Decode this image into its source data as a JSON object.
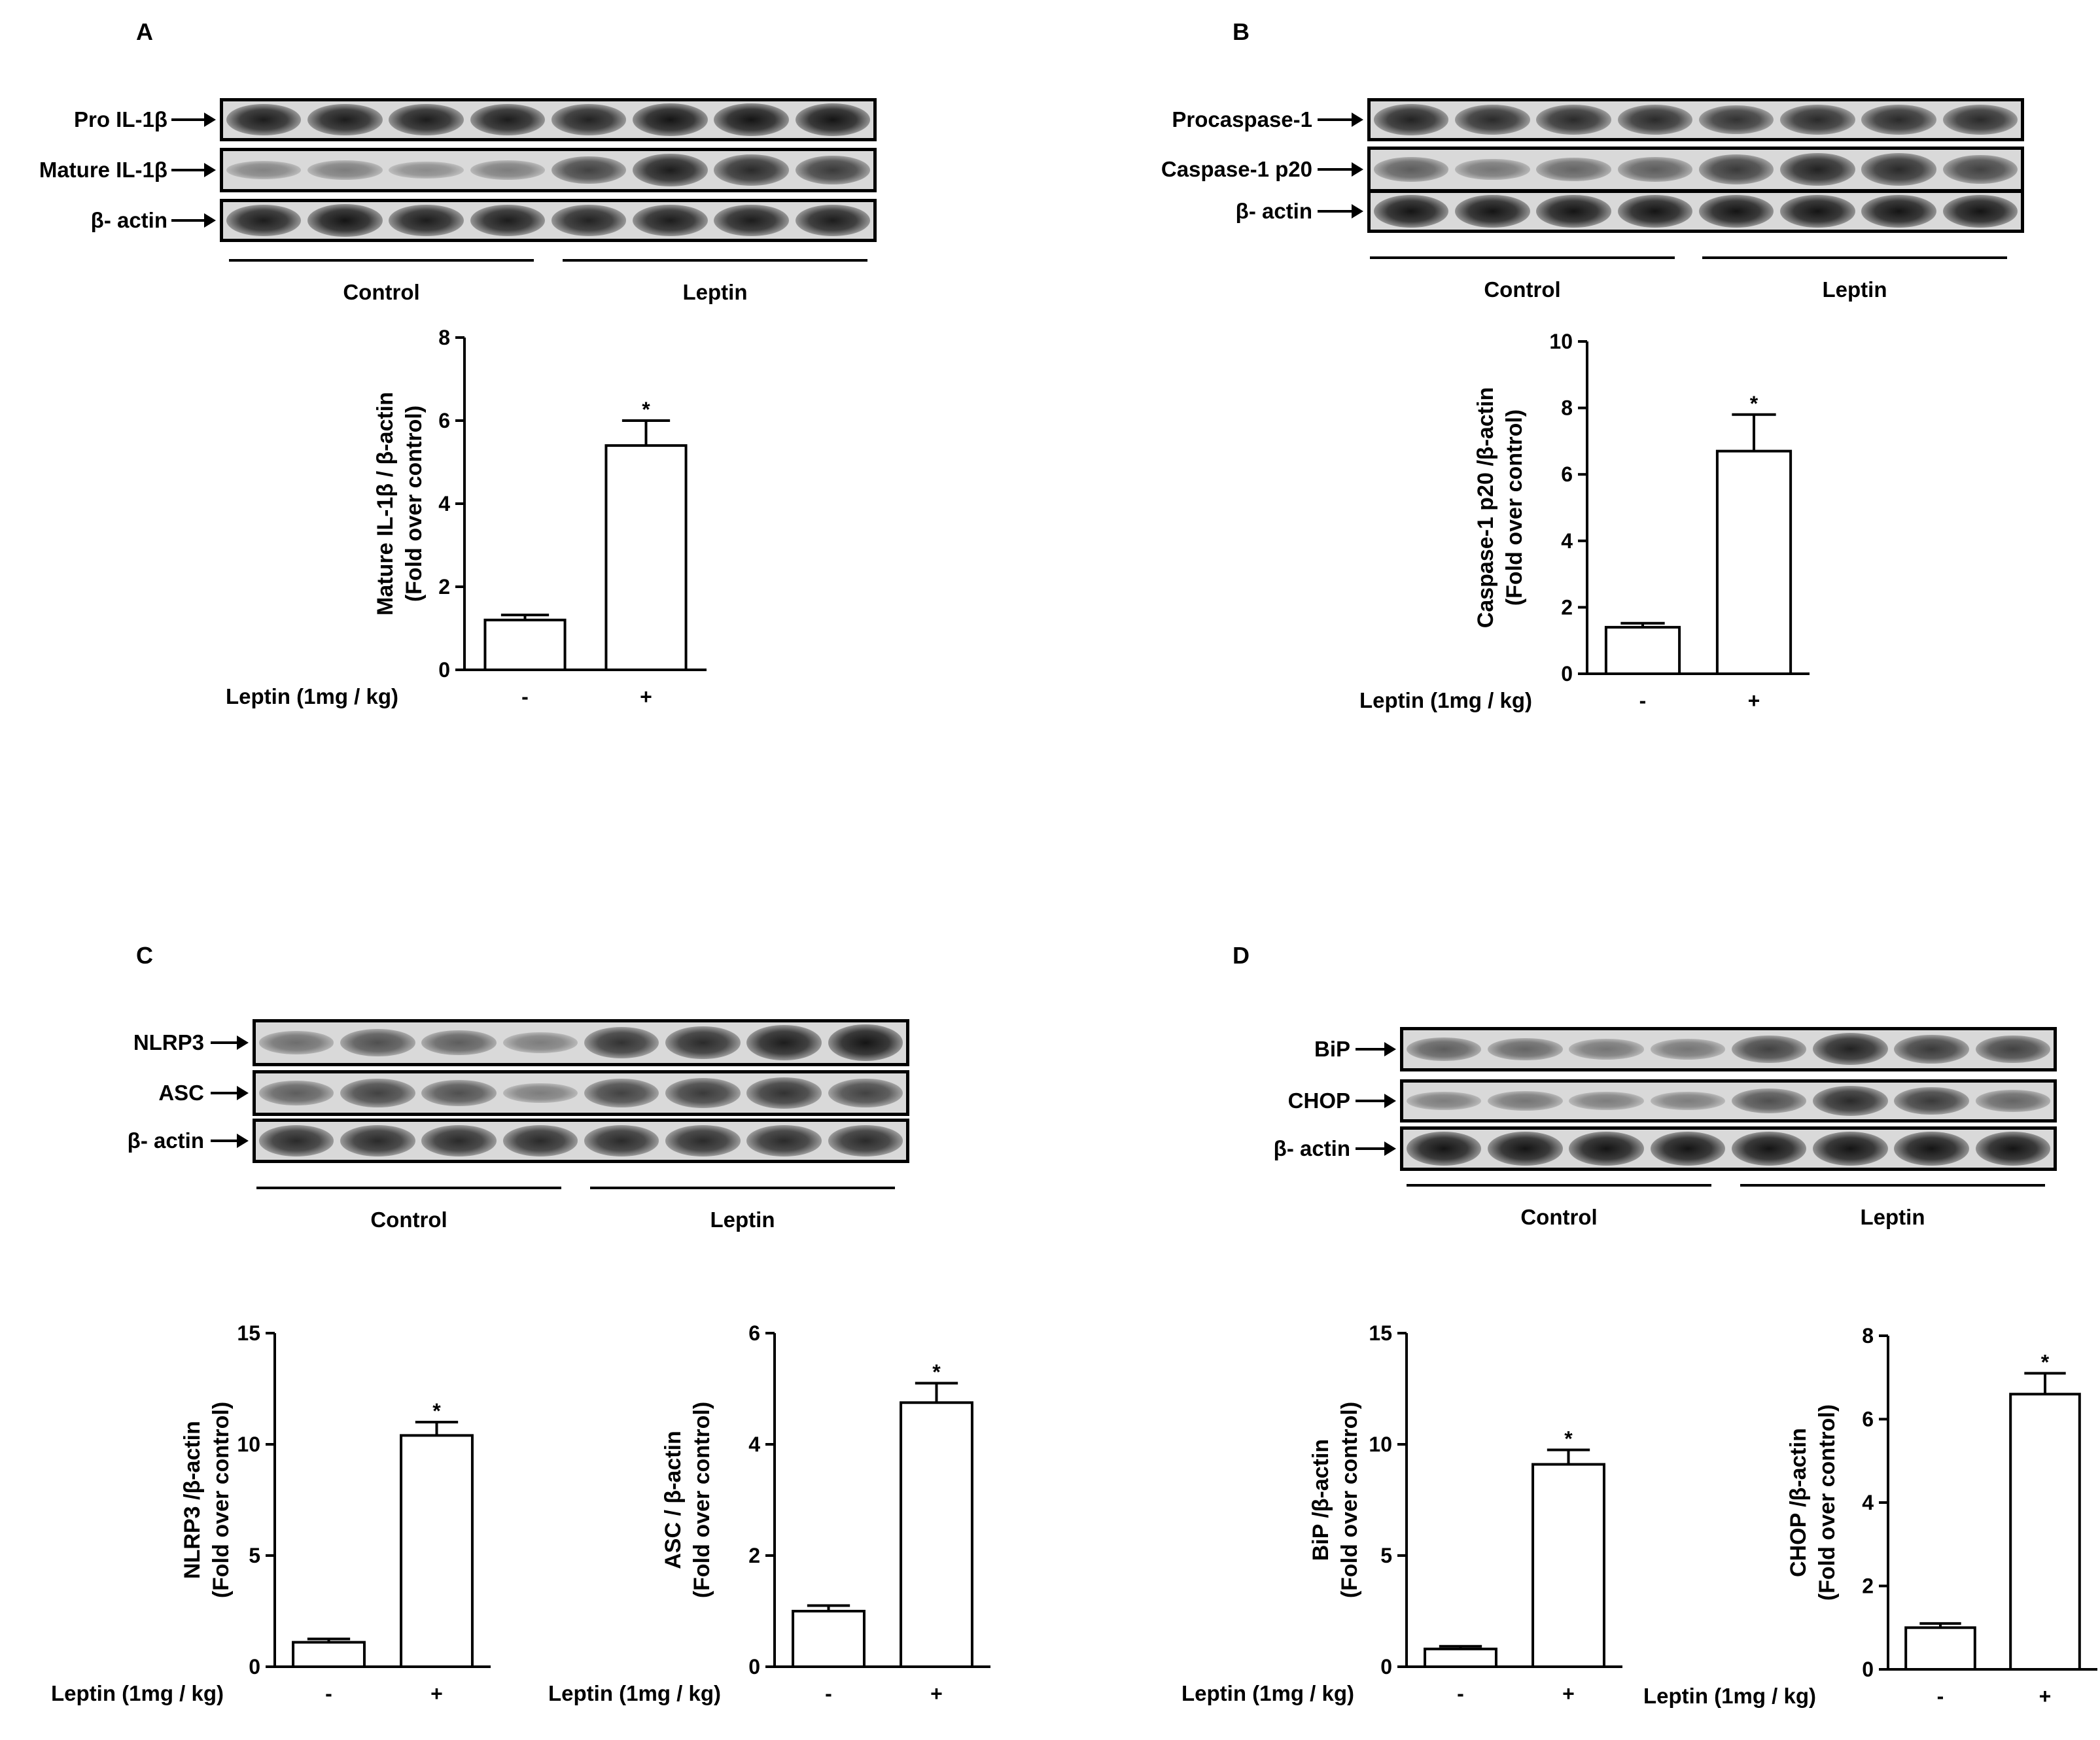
{
  "panels": [
    {
      "letter": "A",
      "blots": [
        {
          "label": "Pro IL-1β",
          "intensities": [
            0.95,
            0.95,
            0.95,
            0.95,
            0.9,
            1,
            1,
            1
          ]
        },
        {
          "label": "Mature IL-1β",
          "intensities": [
            0.25,
            0.3,
            0.2,
            0.3,
            0.7,
            0.95,
            0.85,
            0.75
          ]
        },
        {
          "label": "β- actin",
          "intensities": [
            0.95,
            1,
            0.95,
            0.95,
            0.9,
            0.95,
            0.95,
            0.95
          ]
        }
      ],
      "groups": [
        "Control",
        "Leptin"
      ]
    },
    {
      "letter": "B",
      "blots": [
        {
          "label": "Procaspase-1",
          "intensities": [
            0.9,
            0.85,
            0.85,
            0.85,
            0.8,
            0.85,
            0.85,
            0.85
          ]
        },
        {
          "label": "Caspase-1 p20",
          "intensities": [
            0.5,
            0.35,
            0.45,
            0.5,
            0.75,
            0.9,
            0.85,
            0.7
          ]
        },
        {
          "label": "β- actin",
          "intensities": [
            1,
            1,
            1,
            1,
            1,
            1,
            1,
            1
          ]
        }
      ],
      "groups": [
        "Control",
        "Leptin"
      ]
    },
    {
      "letter": "C",
      "blots": [
        {
          "label": "NLRP3",
          "intensities": [
            0.4,
            0.6,
            0.5,
            0.3,
            0.8,
            0.85,
            0.95,
            1
          ]
        },
        {
          "label": "ASC",
          "intensities": [
            0.5,
            0.7,
            0.6,
            0.3,
            0.7,
            0.75,
            0.8,
            0.7
          ]
        },
        {
          "label": "β- actin",
          "intensities": [
            0.85,
            0.85,
            0.85,
            0.85,
            0.85,
            0.85,
            0.85,
            0.85
          ]
        }
      ],
      "groups": [
        "Control",
        "Leptin"
      ]
    },
    {
      "letter": "D",
      "blots": [
        {
          "label": "BiP",
          "intensities": [
            0.5,
            0.45,
            0.35,
            0.35,
            0.7,
            0.9,
            0.75,
            0.7
          ]
        },
        {
          "label": "CHOP",
          "intensities": [
            0.3,
            0.35,
            0.3,
            0.3,
            0.6,
            0.85,
            0.75,
            0.45
          ]
        },
        {
          "label": "β- actin",
          "intensities": [
            1,
            1,
            1,
            1,
            1,
            1,
            1,
            1
          ]
        }
      ],
      "groups": [
        "Control",
        "Leptin"
      ]
    }
  ],
  "chart_data": [
    {
      "type": "bar",
      "panel": "A",
      "categories": [
        "-",
        "+"
      ],
      "values": [
        1.2,
        5.4
      ],
      "errors": [
        0.12,
        0.6
      ],
      "significance": [
        "",
        "*"
      ],
      "ylabel_line1": "Mature IL-1β / β-actin",
      "ylabel_line2": "(Fold over control)",
      "xlabel": "Leptin (1mg  / kg)",
      "ylim": [
        0,
        8
      ],
      "yticks": [
        0,
        2,
        4,
        6,
        8
      ]
    },
    {
      "type": "bar",
      "panel": "B",
      "categories": [
        "-",
        "+"
      ],
      "values": [
        1.4,
        6.7
      ],
      "errors": [
        0.12,
        1.1
      ],
      "significance": [
        "",
        "*"
      ],
      "ylabel_line1": "Caspase-1 p20 /β-actin",
      "ylabel_line2": "(Fold over control)",
      "xlabel": "Leptin (1mg  / kg)",
      "ylim": [
        0,
        10
      ],
      "yticks": [
        0,
        2,
        4,
        6,
        8,
        10
      ]
    },
    {
      "type": "bar",
      "panel": "C",
      "categories": [
        "-",
        "+"
      ],
      "values": [
        1.1,
        10.4
      ],
      "errors": [
        0.15,
        0.6
      ],
      "significance": [
        "",
        "*"
      ],
      "ylabel_line1": "NLRP3 /β-actin",
      "ylabel_line2": "(Fold over control)",
      "xlabel": "Leptin (1mg  / kg)",
      "ylim": [
        0,
        15
      ],
      "yticks": [
        0,
        5,
        10,
        15
      ]
    },
    {
      "type": "bar",
      "panel": "C",
      "categories": [
        "-",
        "+"
      ],
      "values": [
        1.0,
        4.75
      ],
      "errors": [
        0.1,
        0.35
      ],
      "significance": [
        "",
        "*"
      ],
      "ylabel_line1": "ASC / β-actin",
      "ylabel_line2": "(Fold over control)",
      "xlabel": "Leptin (1mg  / kg)",
      "ylim": [
        0,
        6
      ],
      "yticks": [
        0,
        2,
        4,
        6
      ]
    },
    {
      "type": "bar",
      "panel": "D",
      "categories": [
        "-",
        "+"
      ],
      "values": [
        0.8,
        9.1
      ],
      "errors": [
        0.12,
        0.65
      ],
      "significance": [
        "",
        "*"
      ],
      "ylabel_line1": "BiP /β-actin",
      "ylabel_line2": "(Fold over control)",
      "xlabel": "Leptin (1mg  / kg)",
      "ylim": [
        0,
        15
      ],
      "yticks": [
        0,
        5,
        10,
        15
      ]
    },
    {
      "type": "bar",
      "panel": "D",
      "categories": [
        "-",
        "+"
      ],
      "values": [
        1.0,
        6.6
      ],
      "errors": [
        0.1,
        0.5
      ],
      "significance": [
        "",
        "*"
      ],
      "ylabel_line1": "CHOP /β-actin",
      "ylabel_line2": "(Fold over control)",
      "xlabel": "Leptin (1mg  / kg)",
      "ylim": [
        0,
        8
      ],
      "yticks": [
        0,
        2,
        4,
        6,
        8
      ]
    }
  ]
}
